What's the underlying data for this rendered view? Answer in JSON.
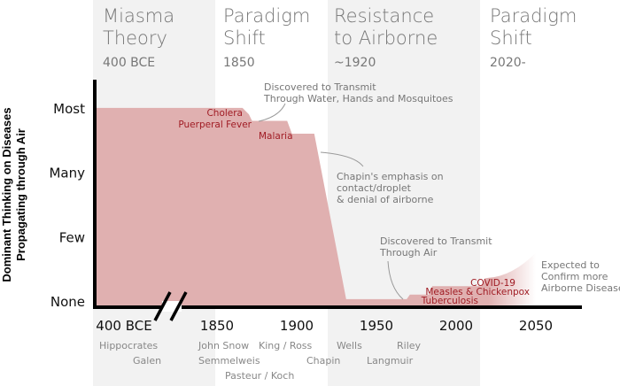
{
  "chart_data": {
    "type": "area",
    "ylabel": "Dominant Thinking on Diseases Propagating through Air",
    "y_levels": [
      "None",
      "Few",
      "Many",
      "Most"
    ],
    "x_ticks": [
      "400 BCE",
      "1850",
      "1900",
      "1950",
      "2000",
      "2050"
    ],
    "axis_break": true,
    "eras": [
      {
        "title": [
          "Miasma",
          "Theory"
        ],
        "sub": "400 BCE",
        "shaded": true
      },
      {
        "title": [
          "Paradigm",
          "Shift"
        ],
        "sub": "1850",
        "shaded": false
      },
      {
        "title": [
          "Resistance",
          "to Airborne"
        ],
        "sub": "~1920",
        "shaded": true
      },
      {
        "title": [
          "Paradigm",
          "Shift"
        ],
        "sub": "2020-",
        "shaded": false
      }
    ],
    "series_points": [
      {
        "x": "400 BCE",
        "y": 3.0
      },
      {
        "x": 1866,
        "y": 3.0
      },
      {
        "x": 1870,
        "y": 2.9
      },
      {
        "x": 1872,
        "y": 2.8
      },
      {
        "x": 1894,
        "y": 2.8
      },
      {
        "x": 1897,
        "y": 2.6
      },
      {
        "x": 1911,
        "y": 2.6
      },
      {
        "x": 1931,
        "y": 0.03
      },
      {
        "x": 1969,
        "y": 0.03
      },
      {
        "x": 1971,
        "y": 0.1
      },
      {
        "x": 1983,
        "y": 0.1
      },
      {
        "x": 1985,
        "y": 0.23
      },
      {
        "x": 2016,
        "y": 0.23
      },
      {
        "x": 2018,
        "y": 0.35
      },
      {
        "x": 2030,
        "y": 0.4
      },
      {
        "x": 2040,
        "y": 0.52
      },
      {
        "x": 2050,
        "y": 0.75
      }
    ],
    "projection_from": 2020,
    "colors": {
      "fill": "#e0b0b0",
      "disease_label": "#a01c24",
      "band": "#f2f2f2"
    },
    "diseases": [
      "Cholera",
      "Puerperal Fever",
      "Malaria",
      "Tuberculosis",
      "Measles & Chickenpox",
      "COVID-19"
    ],
    "annotations": [
      [
        "Discovered to Transmit",
        "Through Water, Hands and Mosquitoes"
      ],
      [
        "Chapin's emphasis on",
        "contact/droplet",
        "& denial of airborne"
      ],
      [
        "Discovered to Transmit",
        "Through Air"
      ],
      [
        "Expected to",
        "Confirm more",
        "Airborne Diseases"
      ]
    ],
    "scientists": [
      "Hippocrates",
      "Galen",
      "John Snow",
      "Semmelweis",
      "Pasteur / Koch",
      "King / Ross",
      "Chapin",
      "Wells",
      "Langmuir",
      "Riley"
    ]
  }
}
